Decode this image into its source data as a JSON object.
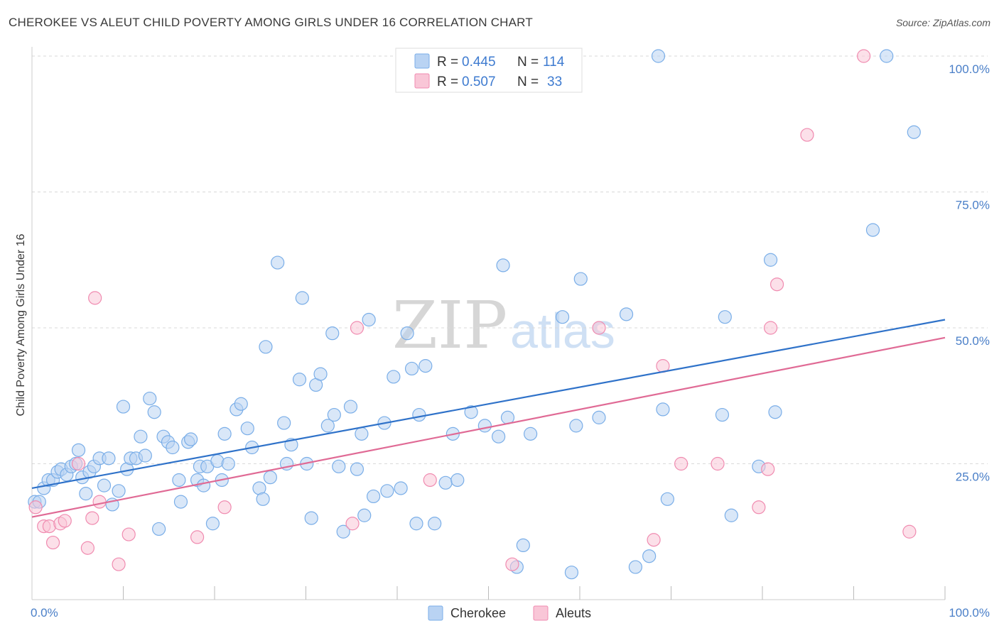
{
  "title": "CHEROKEE VS ALEUT CHILD POVERTY AMONG GIRLS UNDER 16 CORRELATION CHART",
  "source": "Source: ZipAtlas.com",
  "watermark": {
    "zip": "ZIP",
    "atlas": "atlas"
  },
  "colors": {
    "cherokee": "#7aaee8",
    "cherokee_fill": "#b9d3f3",
    "aleuts": "#f08bb0",
    "aleuts_fill": "#f9c6d7",
    "cherokee_line": "#2f72c9",
    "aleuts_line": "#e06a95",
    "grid": "#d9d9d9"
  },
  "legend": {
    "row1": {
      "r_label": "R = ",
      "r_value": "0.445",
      "n_label": "N = ",
      "n_value": "114"
    },
    "row2": {
      "r_label": "R = ",
      "r_value": "0.507",
      "n_label": "N = ",
      "n_value": "33"
    }
  },
  "chart_data": {
    "type": "scatter",
    "title": "CHEROKEE VS ALEUT CHILD POVERTY AMONG GIRLS UNDER 16 CORRELATION CHART",
    "xlabel": "",
    "ylabel": "Child Poverty Among Girls Under 16",
    "xlim": [
      0,
      100
    ],
    "ylim": [
      0,
      100
    ],
    "x_tick_labels": [
      "0.0%",
      "100.0%"
    ],
    "y_tick_labels": [
      "25.0%",
      "50.0%",
      "75.0%",
      "100.0%"
    ],
    "y_ticks": [
      25,
      50,
      75,
      100
    ],
    "grid": true,
    "legend_position": "top-center",
    "series": [
      {
        "name": "Cherokee",
        "trend": {
          "x": [
            0,
            100
          ],
          "y": [
            20.5,
            51.5
          ]
        },
        "points": [
          [
            0.3,
            18
          ],
          [
            0.8,
            18
          ],
          [
            1.3,
            20.5
          ],
          [
            1.8,
            22
          ],
          [
            2.3,
            22
          ],
          [
            2.8,
            23.5
          ],
          [
            3.2,
            24
          ],
          [
            3.8,
            23
          ],
          [
            4.3,
            24.5
          ],
          [
            4.8,
            25
          ],
          [
            5.1,
            27.5
          ],
          [
            5.5,
            22.5
          ],
          [
            5.9,
            19.5
          ],
          [
            6.3,
            23.5
          ],
          [
            6.8,
            24.5
          ],
          [
            7.4,
            26
          ],
          [
            7.9,
            21
          ],
          [
            8.4,
            26
          ],
          [
            8.8,
            17.5
          ],
          [
            9.5,
            20
          ],
          [
            10,
            35.5
          ],
          [
            10.4,
            24
          ],
          [
            10.8,
            26
          ],
          [
            11.4,
            26
          ],
          [
            11.9,
            30
          ],
          [
            12.4,
            26.5
          ],
          [
            12.9,
            37
          ],
          [
            13.4,
            34.5
          ],
          [
            13.9,
            13
          ],
          [
            14.4,
            30
          ],
          [
            14.9,
            29
          ],
          [
            15.4,
            28
          ],
          [
            16.1,
            22
          ],
          [
            16.3,
            18
          ],
          [
            17.1,
            29
          ],
          [
            17.4,
            29.5
          ],
          [
            18.1,
            22
          ],
          [
            18.4,
            24.5
          ],
          [
            18.8,
            21
          ],
          [
            19.2,
            24.5
          ],
          [
            19.8,
            14
          ],
          [
            20.3,
            25.5
          ],
          [
            20.8,
            22
          ],
          [
            21.1,
            30.5
          ],
          [
            21.5,
            25
          ],
          [
            22.4,
            35
          ],
          [
            22.9,
            36
          ],
          [
            23.6,
            31.5
          ],
          [
            24.1,
            28
          ],
          [
            24.9,
            20.5
          ],
          [
            25.3,
            18.5
          ],
          [
            25.6,
            46.5
          ],
          [
            26.1,
            22.5
          ],
          [
            26.9,
            62
          ],
          [
            27.6,
            32.5
          ],
          [
            27.9,
            25
          ],
          [
            28.4,
            28.5
          ],
          [
            29.3,
            40.5
          ],
          [
            29.6,
            55.5
          ],
          [
            30.1,
            25
          ],
          [
            30.6,
            15
          ],
          [
            31.1,
            39.5
          ],
          [
            31.6,
            41.5
          ],
          [
            32.4,
            32
          ],
          [
            32.9,
            49
          ],
          [
            33.1,
            34
          ],
          [
            33.6,
            24.5
          ],
          [
            34.1,
            12.5
          ],
          [
            34.9,
            35.5
          ],
          [
            35.6,
            24
          ],
          [
            36.1,
            30.5
          ],
          [
            36.4,
            15.5
          ],
          [
            36.9,
            51.5
          ],
          [
            37.4,
            19
          ],
          [
            38.6,
            32.5
          ],
          [
            38.9,
            20
          ],
          [
            39.6,
            41
          ],
          [
            40.4,
            20.5
          ],
          [
            41.1,
            49
          ],
          [
            41.6,
            42.5
          ],
          [
            42.1,
            14
          ],
          [
            42.4,
            34
          ],
          [
            43.1,
            43
          ],
          [
            44.1,
            14
          ],
          [
            45.3,
            21.5
          ],
          [
            46.1,
            30.5
          ],
          [
            46.6,
            22
          ],
          [
            48.1,
            34.5
          ],
          [
            49.6,
            32
          ],
          [
            51.1,
            30
          ],
          [
            51.6,
            61.5
          ],
          [
            52.1,
            33.5
          ],
          [
            53.1,
            6
          ],
          [
            53.8,
            10
          ],
          [
            54.6,
            30.5
          ],
          [
            58.1,
            52
          ],
          [
            59.1,
            5
          ],
          [
            59.6,
            32
          ],
          [
            60.1,
            59
          ],
          [
            62.1,
            33.5
          ],
          [
            65.1,
            52.5
          ],
          [
            66.1,
            6
          ],
          [
            67.6,
            8
          ],
          [
            68.6,
            100
          ],
          [
            69.1,
            35
          ],
          [
            69.6,
            18.5
          ],
          [
            75.6,
            34
          ],
          [
            75.9,
            52
          ],
          [
            76.6,
            15.5
          ],
          [
            79.6,
            24.5
          ],
          [
            80.9,
            62.5
          ],
          [
            81.4,
            34.5
          ],
          [
            92.1,
            68
          ],
          [
            93.6,
            100
          ],
          [
            96.6,
            86
          ]
        ]
      },
      {
        "name": "Aleuts",
        "trend": {
          "x": [
            0,
            100
          ],
          "y": [
            15.2,
            48.2
          ]
        },
        "points": [
          [
            0.4,
            17
          ],
          [
            1.3,
            13.5
          ],
          [
            1.9,
            13.5
          ],
          [
            2.3,
            10.5
          ],
          [
            3.1,
            14
          ],
          [
            3.6,
            14.5
          ],
          [
            5.1,
            25
          ],
          [
            6.1,
            9.5
          ],
          [
            6.6,
            15
          ],
          [
            6.9,
            55.5
          ],
          [
            7.4,
            18
          ],
          [
            9.5,
            6.5
          ],
          [
            10.6,
            12
          ],
          [
            18.1,
            11.5
          ],
          [
            21.1,
            17
          ],
          [
            35.1,
            14
          ],
          [
            35.6,
            50
          ],
          [
            43.6,
            22
          ],
          [
            52.6,
            6.5
          ],
          [
            62.1,
            50
          ],
          [
            68.1,
            11
          ],
          [
            69.1,
            43
          ],
          [
            71.1,
            25
          ],
          [
            75.1,
            25
          ],
          [
            79.6,
            17
          ],
          [
            80.6,
            24
          ],
          [
            80.9,
            50
          ],
          [
            81.6,
            58
          ],
          [
            84.9,
            85.5
          ],
          [
            91.1,
            100
          ],
          [
            96.1,
            12.5
          ]
        ]
      }
    ]
  },
  "bottom_legend": [
    {
      "label": "Cherokee"
    },
    {
      "label": "Aleuts"
    }
  ]
}
